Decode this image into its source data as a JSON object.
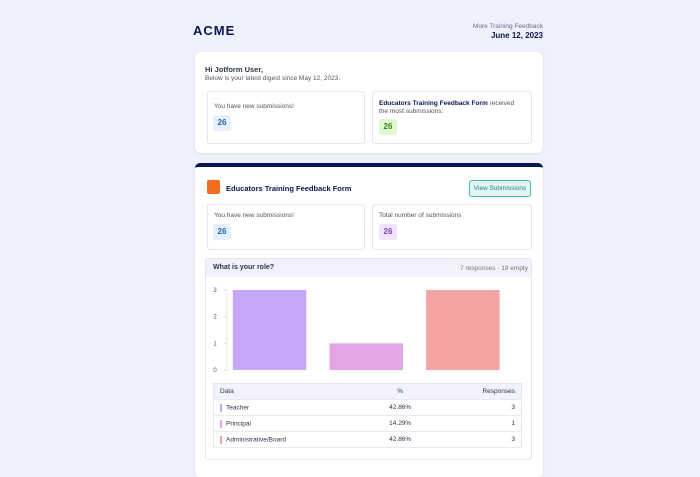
{
  "header": {
    "logo": "ACME",
    "link": "More Training Feedback",
    "date": "June 12, 2023"
  },
  "digest": {
    "greeting": "Hi Jotform User,",
    "subtitle": "Below is your latest digest since May 12, 2023.",
    "new_label": "You have new submissions!",
    "new_count": "26",
    "top_form": "Educators Training Feedback Form",
    "top_suffix": " received the most submissions:",
    "top_count": "26"
  },
  "form": {
    "title": "Educators Training Feedback Form",
    "button": "View Submissions",
    "new_label": "You have new submissions!",
    "new_count": "26",
    "total_label": "Total number of submissions",
    "total_count": "26"
  },
  "question": {
    "title": "What is your role?",
    "meta": "7 responses · 19 empty"
  },
  "chart_data": {
    "type": "bar",
    "values": [
      3,
      1,
      3
    ],
    "colors": [
      "#c5a6f8",
      "#e3a5e6",
      "#f5a3a3"
    ],
    "ylim": [
      0,
      3
    ],
    "yticks": [
      0,
      1,
      2,
      3
    ]
  },
  "table": {
    "header": [
      "Data",
      "%",
      "Responses"
    ],
    "rows": [
      [
        "Teacher",
        "42.86%",
        "3"
      ],
      [
        "Principal",
        "14.29%",
        "1"
      ],
      [
        "Administrative/Board",
        "42.86%",
        "3"
      ]
    ]
  }
}
